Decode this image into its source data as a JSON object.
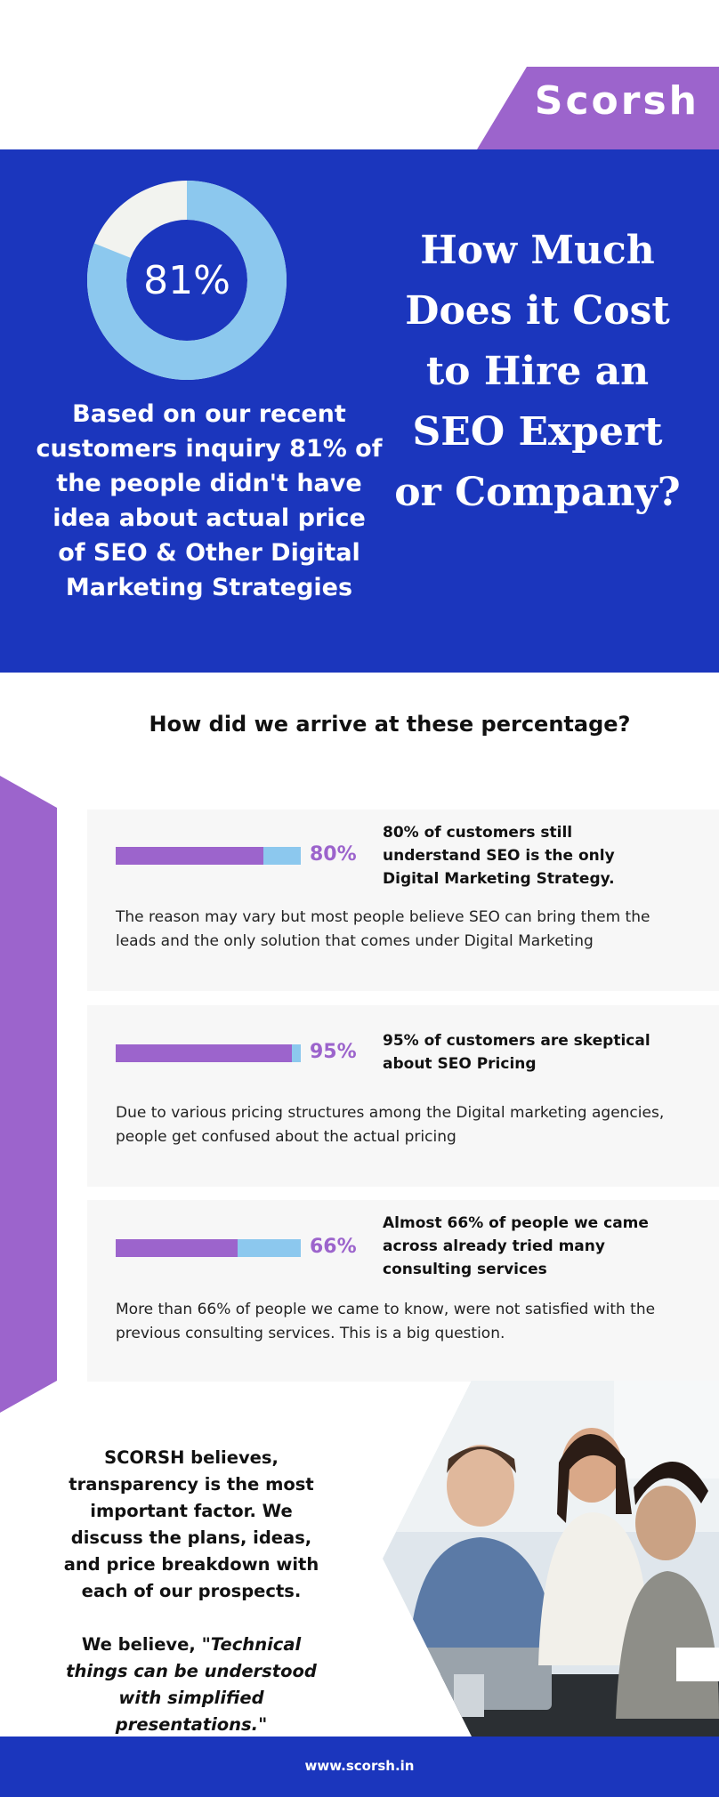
{
  "brand": {
    "logo_text": "Scorsh",
    "accent": "#9c64cc",
    "primary": "#1b36bd",
    "light_blue": "#8cc8ee"
  },
  "hero": {
    "donut": {
      "value": 81,
      "label": "81%"
    },
    "left_text": "Based on our recent customers inquiry 81% of the people didn't have idea about actual price of SEO & Other Digital Marketing Strategies",
    "title": "How Much Does it Cost to Hire an SEO Expert or Company?"
  },
  "section": {
    "title": "How did we arrive at these percentage?"
  },
  "cards": [
    {
      "value": 80,
      "pct_label": "80%",
      "heading": "80% of customers still understand SEO is the only Digital Marketing Strategy.",
      "body": "The reason may vary but most people believe SEO can bring them the leads and the only solution that comes under Digital Marketing"
    },
    {
      "value": 95,
      "pct_label": "95%",
      "heading": "95% of customers are skeptical about SEO Pricing",
      "body": "Due to various pricing structures among the Digital marketing agencies, people get confused about the actual pricing"
    },
    {
      "value": 66,
      "pct_label": "66%",
      "heading": "Almost 66% of people we came across already tried many consulting services",
      "body": "More than 66% of people we came to know, were not satisfied with the previous consulting services. This is a big question."
    }
  ],
  "bottom": {
    "paragraph": "SCORSH believes, transparency is the most important factor. We discuss the plans, ideas, and price breakdown with each of our prospects.",
    "quote_prefix": "We believe, \"",
    "quote_italic": "Technical things can be understood with simplified presentations.",
    "quote_suffix": "\""
  },
  "footer": {
    "url": "www.scorsh.in"
  }
}
